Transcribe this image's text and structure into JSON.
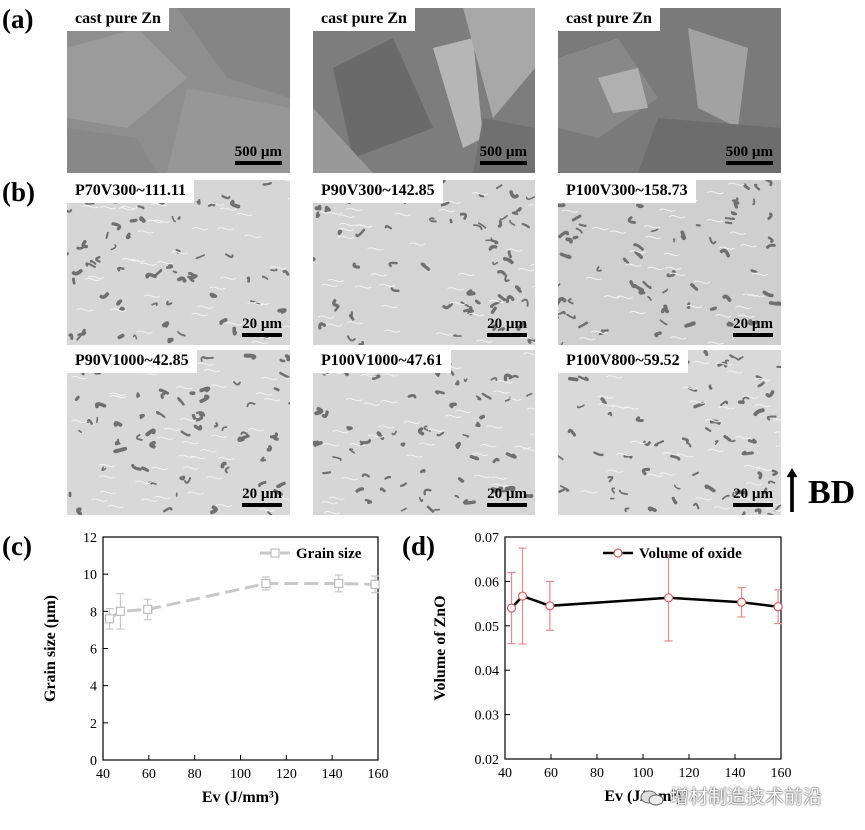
{
  "figure": {
    "panel_labels": {
      "a": "(a)",
      "b": "(b)",
      "c": "(c)",
      "d": "(d)"
    },
    "row_a": [
      {
        "label": "cast pure Zn",
        "scale": "500 µm"
      },
      {
        "label": "cast pure Zn",
        "scale": "500 µm"
      },
      {
        "label": "cast pure Zn",
        "scale": "500 µm"
      }
    ],
    "row_b1": [
      {
        "label": "P70V300~111.11",
        "scale": "20 µm"
      },
      {
        "label": "P90V300~142.85",
        "scale": "20 µm"
      },
      {
        "label": "P100V300~158.73",
        "scale": "20 µm"
      }
    ],
    "row_b2": [
      {
        "label": "P90V1000~42.85",
        "scale": "20 µm"
      },
      {
        "label": "P100V1000~47.61",
        "scale": "20 µm"
      },
      {
        "label": "P100V800~59.52",
        "scale": "20 µm"
      }
    ],
    "build_direction": "BD",
    "watermark": "增材制造技术前沿"
  },
  "chart_data": [
    {
      "type": "line",
      "panel": "(c)",
      "xlabel": "Ev (J/mm³)",
      "ylabel": "Grain size (µm)",
      "xlim": [
        40,
        160
      ],
      "ylim": [
        0,
        12
      ],
      "xticks": [
        40,
        60,
        80,
        100,
        120,
        140,
        160
      ],
      "yticks": [
        0,
        2,
        4,
        6,
        8,
        10,
        12
      ],
      "legend_position": "top-right",
      "grid": false,
      "color": "#c8c8c8",
      "series": [
        {
          "name": "Grain size",
          "x": [
            42.85,
            47.61,
            59.52,
            111.11,
            142.85,
            158.73
          ],
          "y": [
            7.6,
            8.0,
            8.1,
            9.5,
            9.5,
            9.45
          ],
          "err": [
            0.55,
            0.95,
            0.55,
            0.35,
            0.45,
            0.45
          ]
        }
      ]
    },
    {
      "type": "line",
      "panel": "(d)",
      "xlabel": "Ev (J/mm³)",
      "ylabel": "Volume of ZnO",
      "xlim": [
        40,
        160
      ],
      "ylim": [
        0.02,
        0.07
      ],
      "xticks": [
        40,
        60,
        80,
        100,
        120,
        140,
        160
      ],
      "yticks": [
        0.02,
        0.03,
        0.04,
        0.05,
        0.06,
        0.07
      ],
      "legend_position": "top-right",
      "grid": false,
      "line_color": "#000000",
      "marker_color": "#e05a5a",
      "series": [
        {
          "name": "Volume  of  oxide",
          "x": [
            42.85,
            47.61,
            59.52,
            111.11,
            142.85,
            158.73
          ],
          "y": [
            0.054,
            0.0567,
            0.0545,
            0.0563,
            0.0553,
            0.0543
          ],
          "err": [
            0.008,
            0.0108,
            0.0055,
            0.0097,
            0.0033,
            0.0038
          ]
        }
      ]
    }
  ]
}
